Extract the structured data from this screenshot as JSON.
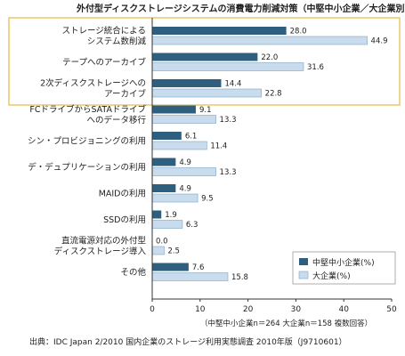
{
  "chart_data": {
    "type": "bar",
    "orientation": "horizontal",
    "title": "外付型ディスクストレージシステムの消費電力削減対策（中堅中小企業／大企業別）",
    "categories": [
      [
        "ストレージ統合による",
        "システム数削減"
      ],
      [
        "テープへのアーカイブ"
      ],
      [
        "2次ディスクストレージへの",
        "アーカイブ"
      ],
      [
        "FCドライブからSATAドライブ",
        "へのデータ移行"
      ],
      [
        "シン・プロビジョニングの利用"
      ],
      [
        "デ・デュプリケーションの利用"
      ],
      [
        "MAIDの利用"
      ],
      [
        "SSDの利用"
      ],
      [
        "直流電源対応の外付型",
        "ディスクストレージ導入"
      ],
      [
        "その他"
      ]
    ],
    "series": [
      {
        "name": "中堅中小企業(%)",
        "values": [
          28.0,
          22.0,
          14.4,
          9.1,
          6.1,
          4.9,
          4.9,
          1.9,
          0.0,
          7.6
        ]
      },
      {
        "name": "大企業(%)",
        "values": [
          44.9,
          31.6,
          22.8,
          13.3,
          11.4,
          13.3,
          9.5,
          6.3,
          2.5,
          15.8
        ]
      }
    ],
    "value_labels": [
      [
        "28.0",
        "22.0",
        "14.4",
        "9.1",
        "6.1",
        "4.9",
        "4.9",
        "1.9",
        "0.0",
        "7.6"
      ],
      [
        "44.9",
        "31.6",
        "22.8",
        "13.3",
        "11.4",
        "13.3",
        "9.5",
        "6.3",
        "2.5",
        "15.8"
      ]
    ],
    "xlim": [
      0,
      50
    ],
    "xticks": [
      0,
      10,
      20,
      30,
      40,
      50
    ],
    "highlighted_categories": [
      0,
      1,
      2
    ],
    "legend_position": "bottom-right",
    "colors": {
      "series1": "#2e5f7f",
      "series2": "#c9dced",
      "series2_border": "#7ea3c2",
      "highlight_border": "#e8c96a",
      "axis": "#333333"
    },
    "note": "（中堅中小企業n＝264 大企業n＝158 複数回答）",
    "source": "出典：IDC Japan 2/2010 国内企業のストレージ利用実態調査 2010年版（J9710601）"
  }
}
